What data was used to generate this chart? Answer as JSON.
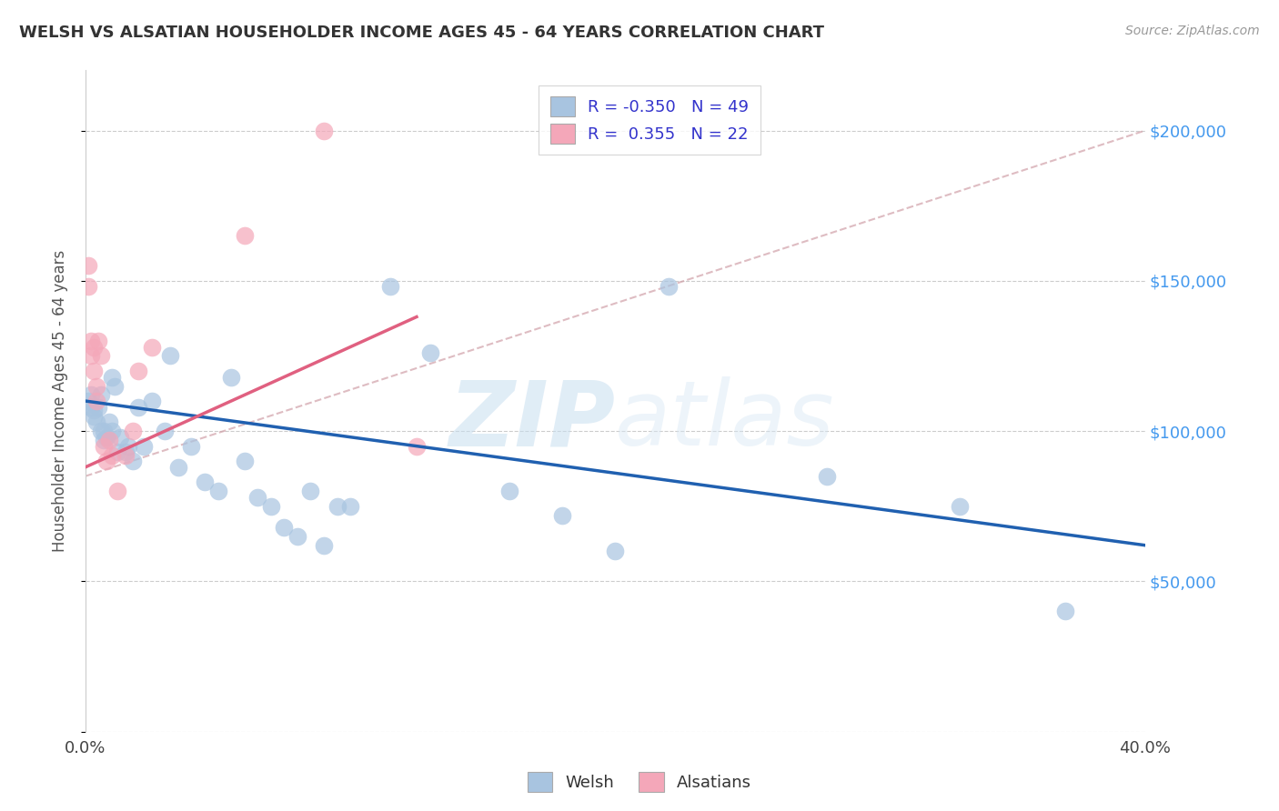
{
  "title": "WELSH VS ALSATIAN HOUSEHOLDER INCOME AGES 45 - 64 YEARS CORRELATION CHART",
  "source": "Source: ZipAtlas.com",
  "ylabel": "Householder Income Ages 45 - 64 years",
  "x_min": 0.0,
  "x_max": 0.4,
  "y_min": 0,
  "y_max": 220000,
  "x_ticks": [
    0.0,
    0.05,
    0.1,
    0.15,
    0.2,
    0.25,
    0.3,
    0.35,
    0.4
  ],
  "x_tick_labels": [
    "0.0%",
    "",
    "",
    "",
    "",
    "",
    "",
    "",
    "40.0%"
  ],
  "y_ticks": [
    0,
    50000,
    100000,
    150000,
    200000
  ],
  "y_tick_labels": [
    "",
    "$50,000",
    "$100,000",
    "$150,000",
    "$200,000"
  ],
  "welsh_color": "#a8c4e0",
  "alsatian_color": "#f4a7b9",
  "welsh_line_color": "#2060b0",
  "alsatian_line_color": "#e06080",
  "dashed_line_color": "#d0a0a8",
  "legend_text_color": "#3333cc",
  "watermark_zip": "ZIP",
  "watermark_atlas": "atlas",
  "welsh_R": -0.35,
  "welsh_N": 49,
  "alsatian_R": 0.355,
  "alsatian_N": 22,
  "welsh_scatter_x": [
    0.001,
    0.002,
    0.002,
    0.003,
    0.003,
    0.004,
    0.005,
    0.006,
    0.006,
    0.007,
    0.007,
    0.008,
    0.009,
    0.01,
    0.01,
    0.011,
    0.012,
    0.013,
    0.015,
    0.016,
    0.018,
    0.02,
    0.022,
    0.025,
    0.03,
    0.032,
    0.035,
    0.04,
    0.045,
    0.05,
    0.055,
    0.06,
    0.065,
    0.07,
    0.075,
    0.08,
    0.085,
    0.09,
    0.095,
    0.1,
    0.115,
    0.13,
    0.16,
    0.18,
    0.2,
    0.22,
    0.28,
    0.33,
    0.37
  ],
  "welsh_scatter_y": [
    110000,
    112000,
    108000,
    107000,
    105000,
    103000,
    108000,
    112000,
    100000,
    100000,
    97000,
    98000,
    103000,
    100000,
    118000,
    115000,
    93000,
    98000,
    93000,
    95000,
    90000,
    108000,
    95000,
    110000,
    100000,
    125000,
    88000,
    95000,
    83000,
    80000,
    118000,
    90000,
    78000,
    75000,
    68000,
    65000,
    80000,
    62000,
    75000,
    75000,
    148000,
    126000,
    80000,
    72000,
    60000,
    148000,
    85000,
    75000,
    40000
  ],
  "alsatian_scatter_x": [
    0.001,
    0.001,
    0.002,
    0.002,
    0.003,
    0.003,
    0.004,
    0.004,
    0.005,
    0.006,
    0.007,
    0.008,
    0.009,
    0.01,
    0.012,
    0.015,
    0.018,
    0.02,
    0.025,
    0.06,
    0.09,
    0.125
  ],
  "alsatian_scatter_y": [
    155000,
    148000,
    130000,
    125000,
    128000,
    120000,
    115000,
    110000,
    130000,
    125000,
    95000,
    90000,
    97000,
    92000,
    80000,
    92000,
    100000,
    120000,
    128000,
    165000,
    200000,
    95000
  ],
  "welsh_trend_x": [
    0.0,
    0.4
  ],
  "welsh_trend_y": [
    110000,
    62000
  ],
  "alsatian_trend_x": [
    0.0,
    0.125
  ],
  "alsatian_trend_y": [
    88000,
    138000
  ],
  "dashed_trend_x": [
    0.0,
    0.4
  ],
  "dashed_trend_y": [
    85000,
    200000
  ],
  "bg_color": "#ffffff",
  "grid_color": "#cccccc"
}
